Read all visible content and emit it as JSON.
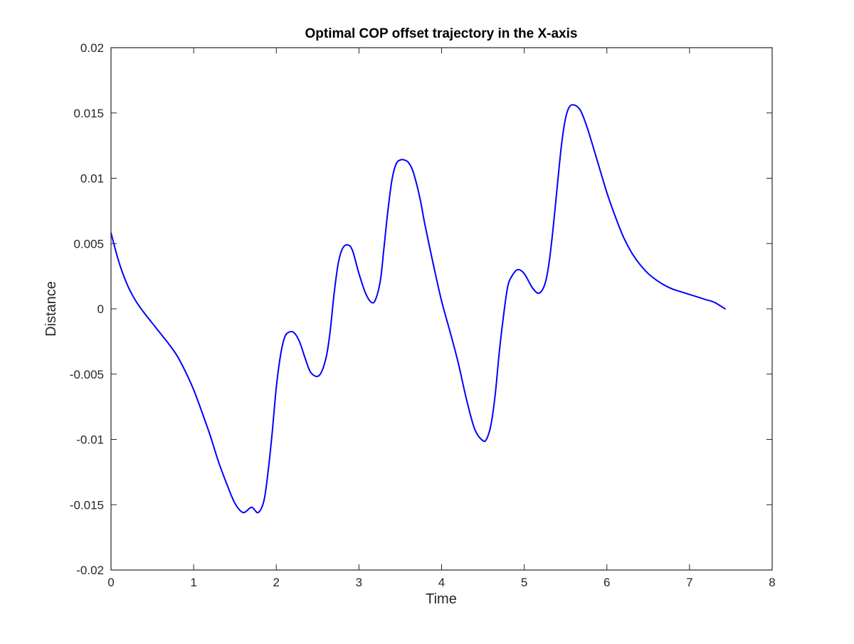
{
  "chart_data": {
    "type": "line",
    "title": "Optimal COP offset trajectory in the X-axis",
    "xlabel": "Time",
    "ylabel": "Distance",
    "xlim": [
      0,
      8
    ],
    "ylim": [
      -0.02,
      0.02
    ],
    "xticks": [
      "0",
      "1",
      "2",
      "3",
      "4",
      "5",
      "6",
      "7",
      "8"
    ],
    "yticks": [
      "-0.02",
      "-0.015",
      "-0.01",
      "-0.005",
      "0",
      "0.005",
      "0.01",
      "0.015",
      "0.02"
    ],
    "grid": false,
    "legend": "none",
    "series": [
      {
        "color": "#0000ff",
        "x": [
          0,
          0.1,
          0.2,
          0.3,
          0.4,
          0.5,
          0.6,
          0.7,
          0.8,
          0.9,
          1.0,
          1.1,
          1.2,
          1.3,
          1.4,
          1.5,
          1.6,
          1.7,
          1.78,
          1.85,
          1.9,
          1.95,
          2.0,
          2.05,
          2.1,
          2.15,
          2.21,
          2.28,
          2.35,
          2.42,
          2.52,
          2.6,
          2.65,
          2.7,
          2.75,
          2.8,
          2.86,
          2.92,
          3.0,
          3.08,
          3.15,
          3.2,
          3.26,
          3.3,
          3.35,
          3.4,
          3.45,
          3.5,
          3.55,
          3.6,
          3.65,
          3.7,
          3.75,
          3.8,
          3.9,
          4.0,
          4.1,
          4.2,
          4.3,
          4.4,
          4.5,
          4.55,
          4.6,
          4.65,
          4.7,
          4.75,
          4.8,
          4.85,
          4.92,
          5.0,
          5.1,
          5.18,
          5.25,
          5.3,
          5.35,
          5.4,
          5.45,
          5.5,
          5.55,
          5.61,
          5.68,
          5.75,
          5.82,
          5.9,
          6.0,
          6.1,
          6.2,
          6.3,
          6.4,
          6.5,
          6.6,
          6.7,
          6.8,
          6.9,
          7.0,
          7.1,
          7.2,
          7.3,
          7.43
        ],
        "y": [
          0.0058,
          0.0035,
          0.0018,
          0.0006,
          -0.0003,
          -0.0011,
          -0.0019,
          -0.0027,
          -0.0036,
          -0.0048,
          -0.0062,
          -0.0079,
          -0.0097,
          -0.0117,
          -0.0134,
          -0.0149,
          -0.0156,
          -0.0152,
          -0.0156,
          -0.0147,
          -0.0125,
          -0.0095,
          -0.006,
          -0.0036,
          -0.0022,
          -0.0018,
          -0.0018,
          -0.0025,
          -0.0038,
          -0.0049,
          -0.0051,
          -0.0038,
          -0.0018,
          0.0012,
          0.0035,
          0.0046,
          0.0049,
          0.0045,
          0.0027,
          0.0012,
          0.0005,
          0.0007,
          0.0022,
          0.0045,
          0.0075,
          0.0099,
          0.0111,
          0.0114,
          0.0114,
          0.0112,
          0.0106,
          0.0095,
          0.0081,
          0.0064,
          0.0034,
          0.0006,
          -0.0017,
          -0.0041,
          -0.0069,
          -0.0092,
          -0.0101,
          -0.0099,
          -0.0088,
          -0.0065,
          -0.0032,
          -0.0005,
          0.0017,
          0.0025,
          0.003,
          0.0027,
          0.0016,
          0.0012,
          0.0019,
          0.0035,
          0.0062,
          0.0094,
          0.0125,
          0.0146,
          0.0155,
          0.0156,
          0.0152,
          0.0141,
          0.0127,
          0.011,
          0.0089,
          0.0071,
          0.0055,
          0.0043,
          0.0034,
          0.0027,
          0.0022,
          0.0018,
          0.0015,
          0.0013,
          0.0011,
          0.0009,
          0.0007,
          0.0005,
          0.0
        ]
      }
    ]
  }
}
